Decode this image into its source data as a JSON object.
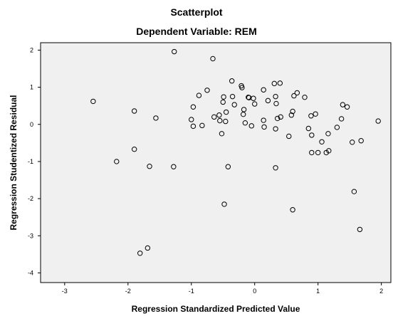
{
  "chart_data": {
    "type": "scatter",
    "title": "Scatterplot",
    "subtitle": "Dependent Variable: REM",
    "xlabel": "Regression Standardized Predicted Value",
    "ylabel": "Regression Studentized Residual",
    "xlim": [
      -3.38,
      2.15
    ],
    "ylim": [
      -4.26,
      2.2
    ],
    "xticks": [
      "-3",
      "-2",
      "-1",
      "0",
      "1",
      "2"
    ],
    "yticks": [
      "2",
      "1",
      "0",
      "-1",
      "-2",
      "-3",
      "-4"
    ],
    "grid": false,
    "marker": "hollow-circle",
    "colors": {
      "plot_background": "#f0f0f0",
      "marker_stroke": "#000000",
      "frame": "#000000"
    },
    "points": [
      {
        "x": -2.55,
        "y": 0.62
      },
      {
        "x": -2.18,
        "y": -1.0
      },
      {
        "x": -1.9,
        "y": 0.36
      },
      {
        "x": -1.9,
        "y": -0.67
      },
      {
        "x": -1.81,
        "y": -3.47
      },
      {
        "x": -1.69,
        "y": -3.33
      },
      {
        "x": -1.66,
        "y": -1.13
      },
      {
        "x": -1.56,
        "y": 0.17
      },
      {
        "x": -1.27,
        "y": 1.96
      },
      {
        "x": -1.28,
        "y": -1.14
      },
      {
        "x": -1.0,
        "y": 0.13
      },
      {
        "x": -0.97,
        "y": 0.47
      },
      {
        "x": -0.97,
        "y": -0.05
      },
      {
        "x": -0.88,
        "y": 0.78
      },
      {
        "x": -0.83,
        "y": -0.03
      },
      {
        "x": -0.75,
        "y": 0.92
      },
      {
        "x": -0.66,
        "y": 1.77
      },
      {
        "x": -0.64,
        "y": 0.2
      },
      {
        "x": -0.56,
        "y": 0.25
      },
      {
        "x": -0.55,
        "y": 0.1
      },
      {
        "x": -0.52,
        "y": -0.25
      },
      {
        "x": -0.49,
        "y": 0.74
      },
      {
        "x": -0.5,
        "y": 0.6
      },
      {
        "x": -0.48,
        "y": -2.15
      },
      {
        "x": -0.46,
        "y": 0.08
      },
      {
        "x": -0.45,
        "y": 0.33
      },
      {
        "x": -0.42,
        "y": -1.14
      },
      {
        "x": -0.36,
        "y": 1.17
      },
      {
        "x": -0.32,
        "y": 0.53
      },
      {
        "x": -0.35,
        "y": 0.75
      },
      {
        "x": -0.21,
        "y": 1.04
      },
      {
        "x": -0.2,
        "y": 0.99
      },
      {
        "x": -0.17,
        "y": 0.4
      },
      {
        "x": -0.18,
        "y": 0.27
      },
      {
        "x": -0.15,
        "y": 0.04
      },
      {
        "x": -0.1,
        "y": 0.73
      },
      {
        "x": -0.09,
        "y": 0.72
      },
      {
        "x": -0.05,
        "y": -0.04
      },
      {
        "x": -0.02,
        "y": 0.7
      },
      {
        "x": 0.0,
        "y": 0.55
      },
      {
        "x": 0.14,
        "y": 0.93
      },
      {
        "x": 0.14,
        "y": 0.11
      },
      {
        "x": 0.15,
        "y": -0.07
      },
      {
        "x": 0.21,
        "y": 0.64
      },
      {
        "x": 0.31,
        "y": 1.1
      },
      {
        "x": 0.33,
        "y": -0.12
      },
      {
        "x": 0.33,
        "y": -1.17
      },
      {
        "x": 0.33,
        "y": 0.75
      },
      {
        "x": 0.34,
        "y": 0.56
      },
      {
        "x": 0.36,
        "y": 0.16
      },
      {
        "x": 0.4,
        "y": 1.11
      },
      {
        "x": 0.41,
        "y": 0.2
      },
      {
        "x": 0.54,
        "y": -0.32
      },
      {
        "x": 0.58,
        "y": 0.25
      },
      {
        "x": 0.6,
        "y": 0.35
      },
      {
        "x": 0.6,
        "y": -2.3
      },
      {
        "x": 0.62,
        "y": 0.77
      },
      {
        "x": 0.67,
        "y": 0.85
      },
      {
        "x": 0.79,
        "y": 0.73
      },
      {
        "x": 0.85,
        "y": -0.11
      },
      {
        "x": 0.89,
        "y": 0.23
      },
      {
        "x": 0.9,
        "y": -0.29
      },
      {
        "x": 0.9,
        "y": -0.76
      },
      {
        "x": 0.96,
        "y": 0.28
      },
      {
        "x": 1.0,
        "y": -0.76
      },
      {
        "x": 1.06,
        "y": -0.47
      },
      {
        "x": 1.13,
        "y": -0.76
      },
      {
        "x": 1.16,
        "y": -0.25
      },
      {
        "x": 1.17,
        "y": -0.71
      },
      {
        "x": 1.3,
        "y": -0.08
      },
      {
        "x": 1.37,
        "y": 0.15
      },
      {
        "x": 1.39,
        "y": 0.53
      },
      {
        "x": 1.46,
        "y": 0.47
      },
      {
        "x": 1.54,
        "y": -0.48
      },
      {
        "x": 1.57,
        "y": -1.81
      },
      {
        "x": 1.66,
        "y": -2.83
      },
      {
        "x": 1.68,
        "y": -0.44
      },
      {
        "x": 1.95,
        "y": 0.09
      }
    ]
  }
}
